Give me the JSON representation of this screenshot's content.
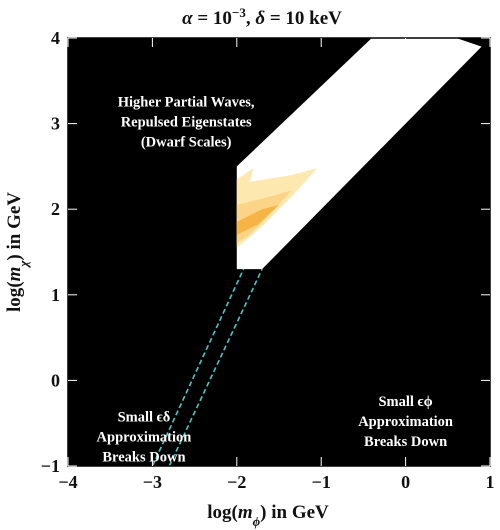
{
  "chart_data": {
    "type": "area",
    "title": "α = 10⁻³,  δ = 10 keV",
    "title_parts": {
      "alpha_sym": "α",
      "alpha_eq": " = 10",
      "alpha_exp": "−3",
      "sep": ",  ",
      "delta_sym": "δ",
      "delta_eq": " = 10 keV"
    },
    "xlabel": "log(mϕ) in GeV",
    "xlabel_parts": {
      "pre": "log(",
      "var": "m",
      "sub": "ϕ",
      "post": ") in GeV"
    },
    "ylabel": "log(mχ) in GeV",
    "ylabel_parts": {
      "pre": "log(",
      "var": "m",
      "sub": "χ",
      "post": ") in GeV"
    },
    "xlim": [
      -4,
      1
    ],
    "ylim": [
      -1,
      4
    ],
    "xticks": [
      -4,
      -3,
      -2,
      -1,
      0,
      1
    ],
    "yticks": [
      -1,
      0,
      1,
      2,
      3,
      4
    ],
    "xtick_labels": [
      "−4",
      "−3",
      "−2",
      "−1",
      "0",
      "1"
    ],
    "ytick_labels": [
      "−1",
      "0",
      "1",
      "2",
      "3",
      "4"
    ],
    "background_color": "#000000",
    "allowed_region": {
      "color": "#ffffff",
      "polygon": [
        [
          -2.0,
          2.5
        ],
        [
          -2.0,
          1.3
        ],
        [
          -1.7,
          1.3
        ],
        [
          0.9,
          3.9
        ],
        [
          0.6,
          4.0
        ],
        [
          -0.4,
          4.0
        ]
      ]
    },
    "contours": [
      {
        "level": "outer",
        "color": "#fde9b0",
        "polygon": [
          [
            -2.0,
            2.35
          ],
          [
            -1.8,
            2.48
          ],
          [
            -1.85,
            2.32
          ],
          [
            -1.35,
            2.4
          ],
          [
            -1.05,
            2.48
          ],
          [
            -1.3,
            2.2
          ],
          [
            -1.7,
            1.8
          ],
          [
            -2.0,
            1.55
          ]
        ]
      },
      {
        "level": "mid",
        "color": "#fbd488",
        "polygon": [
          [
            -2.0,
            2.05
          ],
          [
            -1.6,
            2.15
          ],
          [
            -1.35,
            2.22
          ],
          [
            -1.6,
            1.95
          ],
          [
            -1.85,
            1.7
          ],
          [
            -2.0,
            1.6
          ]
        ]
      },
      {
        "level": "inner",
        "color": "#f7b446",
        "polygon": [
          [
            -2.0,
            1.85
          ],
          [
            -1.7,
            2.0
          ],
          [
            -1.5,
            2.05
          ],
          [
            -1.75,
            1.82
          ],
          [
            -2.0,
            1.7
          ]
        ]
      }
    ],
    "dashed_lines": {
      "color": "#4fc4c4",
      "lines": [
        [
          [
            -3.0,
            -1.0
          ],
          [
            -1.92,
            1.3
          ]
        ],
        [
          [
            -2.8,
            -1.0
          ],
          [
            -1.7,
            1.3
          ]
        ]
      ]
    },
    "annotations": [
      {
        "lines": [
          "Higher Partial Waves,",
          "Repulsed Eigenstates",
          "(Dwarf Scales)"
        ],
        "x": -2.6,
        "y": 3.2
      },
      {
        "lines": [
          "Small ϵδ",
          "Approximation",
          "Breaks Down"
        ],
        "x": -3.1,
        "y": -0.48
      },
      {
        "lines": [
          "Small ϵϕ",
          "Approximation",
          "Breaks Down"
        ],
        "x": 0.0,
        "y": -0.3
      }
    ]
  }
}
